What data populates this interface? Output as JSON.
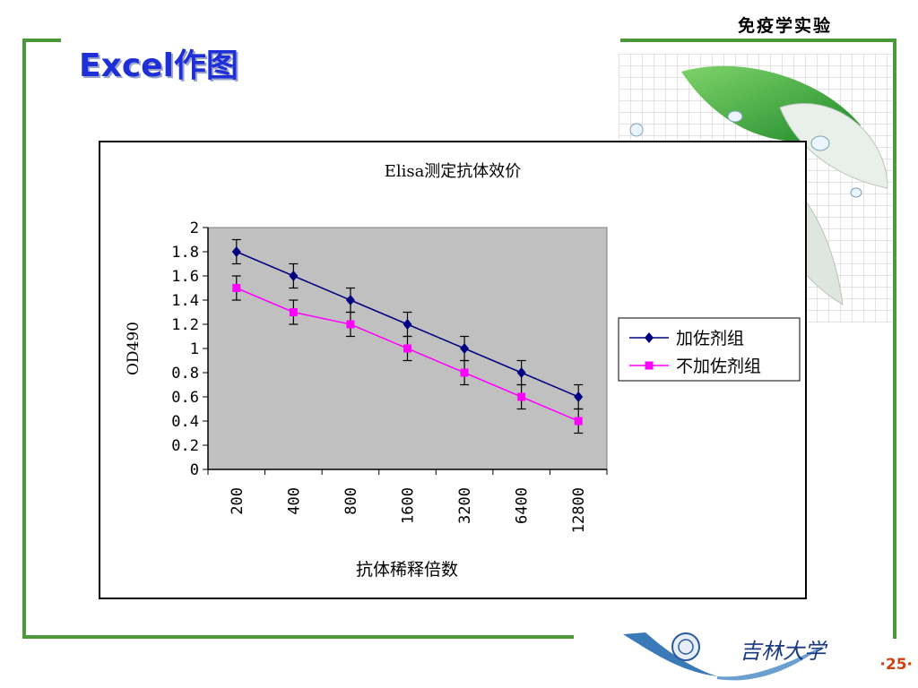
{
  "slide": {
    "course_title": "免疫学实验",
    "title": "Excel作图",
    "page_number": "·25·",
    "university_name": "吉林大学"
  },
  "chart_data": {
    "type": "line",
    "title": "Elisa测定抗体效价",
    "xlabel": "抗体稀释倍数",
    "ylabel": "OD490",
    "categories": [
      "200",
      "400",
      "800",
      "1600",
      "3200",
      "6400",
      "12800"
    ],
    "ylim": [
      0,
      2
    ],
    "yticks": [
      "0",
      "0.2",
      "0.4",
      "0.6",
      "0.8",
      "1",
      "1.2",
      "1.4",
      "1.6",
      "1.8",
      "2"
    ],
    "grid": false,
    "legend_position": "right",
    "series": [
      {
        "name": "加佐剂组",
        "values": [
          1.8,
          1.6,
          1.4,
          1.2,
          1.0,
          0.8,
          0.6
        ],
        "error": [
          0.1,
          0.1,
          0.1,
          0.1,
          0.1,
          0.1,
          0.1
        ],
        "color": "#000080",
        "marker": "diamond"
      },
      {
        "name": "不加佐剂组",
        "values": [
          1.5,
          1.3,
          1.2,
          1.0,
          0.8,
          0.6,
          0.4
        ],
        "error": [
          0.1,
          0.1,
          0.1,
          0.1,
          0.1,
          0.1,
          0.1
        ],
        "color": "#ff00ff",
        "marker": "square"
      }
    ],
    "plot_background": "#c0c0c0"
  }
}
